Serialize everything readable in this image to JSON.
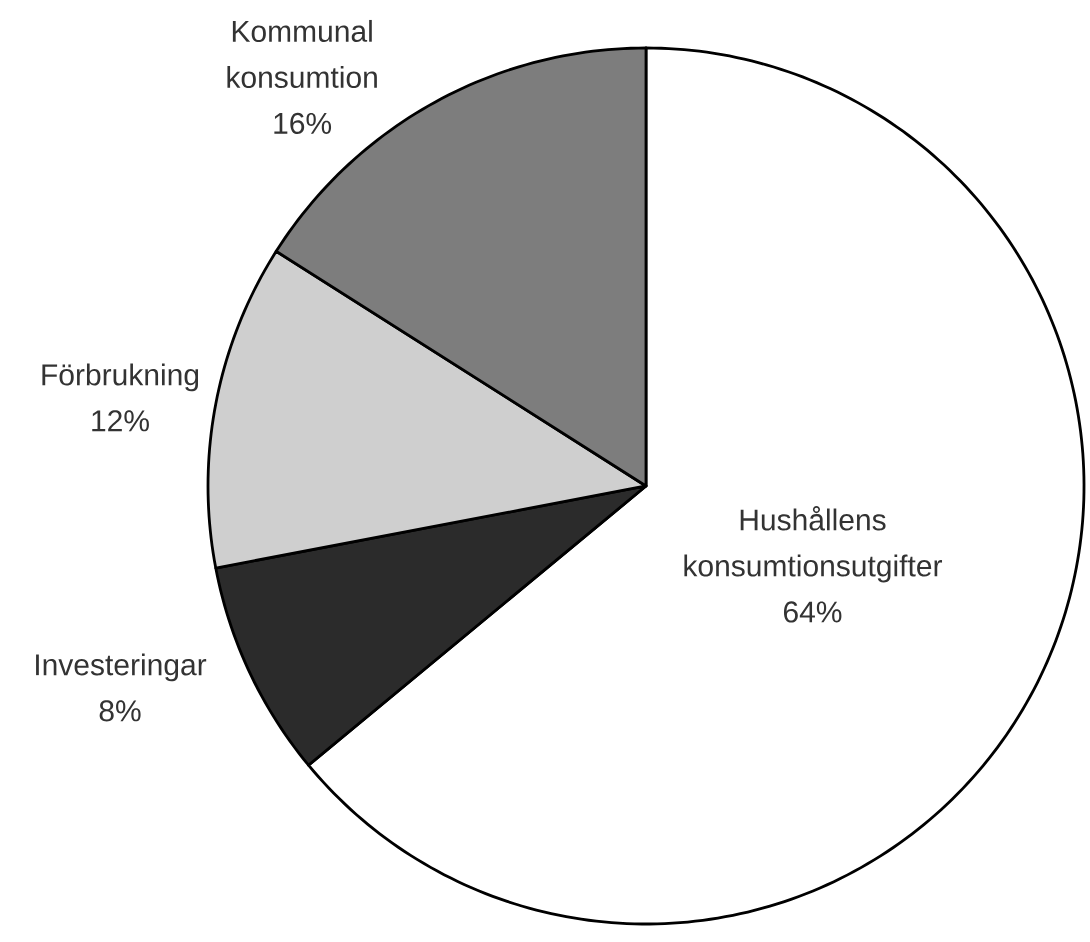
{
  "chart_data": {
    "type": "pie",
    "categories": [
      "Hushållens konsumtionsutgifter",
      "Investeringar",
      "Förbrukning",
      "Kommunal konsumtion"
    ],
    "values": [
      64,
      8,
      12,
      16
    ],
    "colors": [
      "#ffffff",
      "#2b2b2b",
      "#cfcfcf",
      "#7d7d7d"
    ],
    "value_labels": [
      "64%",
      "8%",
      "12%",
      "16%"
    ]
  }
}
